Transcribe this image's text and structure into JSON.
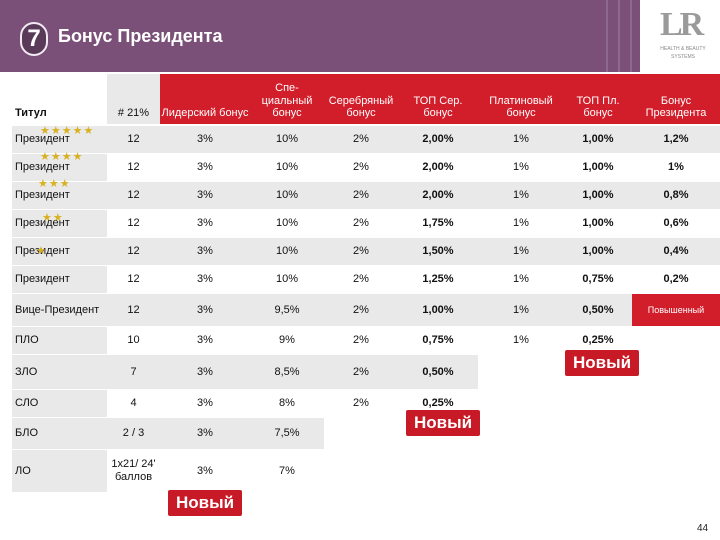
{
  "header": {
    "number": "7",
    "title": "Бонус Президента",
    "logo_mark": "LR",
    "logo_line1": "HEALTH & BEAUTY",
    "logo_line2": "SYSTEMS"
  },
  "columns": [
    "Титул",
    "# 21%",
    "Лидерский бонус",
    "Спе-циальный бонус",
    "Серебряный бонус",
    "ТОП Сер. бонус",
    "Платиновый бонус",
    "ТОП Пл. бонус",
    "Бонус Президента"
  ],
  "rows": [
    [
      "Президент",
      "12",
      "3%",
      "10%",
      "2%",
      "2,00%",
      "1%",
      "1,00%",
      "1,2%"
    ],
    [
      "Президент",
      "12",
      "3%",
      "10%",
      "2%",
      "2,00%",
      "1%",
      "1,00%",
      "1%"
    ],
    [
      "Президент",
      "12",
      "3%",
      "10%",
      "2%",
      "2,00%",
      "1%",
      "1,00%",
      "0,8%"
    ],
    [
      "Президент",
      "12",
      "3%",
      "10%",
      "2%",
      "1,75%",
      "1%",
      "1,00%",
      "0,6%"
    ],
    [
      "Президент",
      "12",
      "3%",
      "10%",
      "2%",
      "1,50%",
      "1%",
      "1,00%",
      "0,4%"
    ],
    [
      "Президент",
      "12",
      "3%",
      "10%",
      "2%",
      "1,25%",
      "1%",
      "0,75%",
      "0,2%"
    ],
    [
      "Вице-Президент",
      "12",
      "3%",
      "9,5%",
      "2%",
      "1,00%",
      "1%",
      "0,50%",
      "Повышенный"
    ],
    [
      "ПЛО",
      "10",
      "3%",
      "9%",
      "2%",
      "0,75%",
      "1%",
      "0,25%",
      ""
    ],
    [
      "ЗЛО",
      "7",
      "3%",
      "8,5%",
      "2%",
      "0,50%",
      "",
      "",
      ""
    ],
    [
      "СЛО",
      "4",
      "3%",
      "8%",
      "2%",
      "0,25%",
      "",
      "",
      ""
    ],
    [
      "БЛО",
      "2 / 3",
      "3%",
      "7,5%",
      "",
      "",
      "",
      "",
      ""
    ],
    [
      "ЛО",
      "1x21/ 24' баллов",
      "3%",
      "7%",
      "",
      "",
      "",
      "",
      ""
    ]
  ],
  "stars": [
    "★★★★★",
    "★★★★",
    "★★★",
    "★★",
    "★"
  ],
  "badges": {
    "new": "Новый"
  },
  "page_number": "44",
  "colors": {
    "header": "#7a4f78",
    "accent_red": "#d21d2a",
    "row_tint": "#e9e9e9"
  }
}
